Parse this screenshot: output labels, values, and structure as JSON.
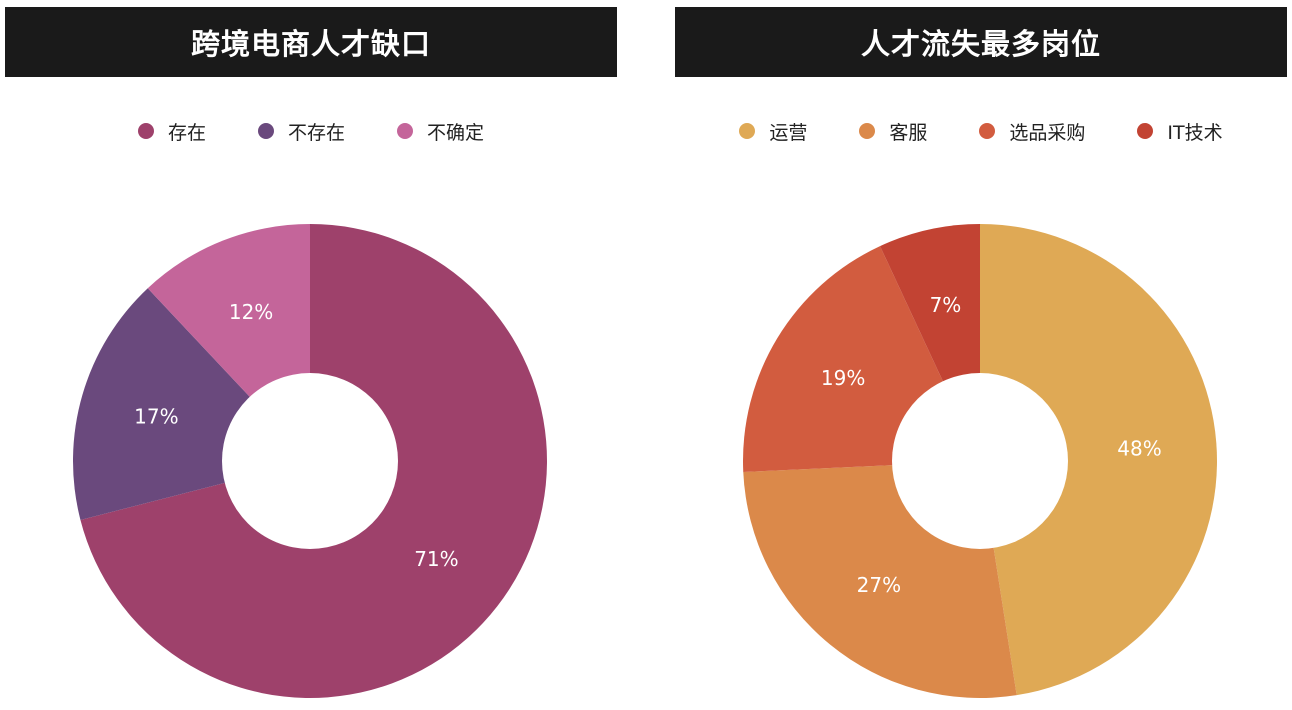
{
  "chart_data": [
    {
      "type": "pie",
      "title": "跨境电商人才缺口",
      "legend_position": "top",
      "donut": true,
      "categories": [
        "存在",
        "不存在",
        "不确定"
      ],
      "values": [
        71,
        17,
        12
      ],
      "labels": [
        "71%",
        "17%",
        "12%"
      ],
      "colors": [
        "#9e416b",
        "#6a497d",
        "#c4659a"
      ],
      "start_angle_deg": 0,
      "direction": "clockwise"
    },
    {
      "type": "pie",
      "title": "人才流失最多岗位",
      "legend_position": "top",
      "donut": true,
      "categories": [
        "运营",
        "客服",
        "选品采购",
        "IT技术"
      ],
      "values": [
        48,
        27,
        19,
        7
      ],
      "labels": [
        "48%",
        "27%",
        "19%",
        "7%"
      ],
      "colors": [
        "#dfa955",
        "#db894a",
        "#d25c3f",
        "#c24333"
      ],
      "start_angle_deg": 0,
      "direction": "clockwise"
    }
  ]
}
